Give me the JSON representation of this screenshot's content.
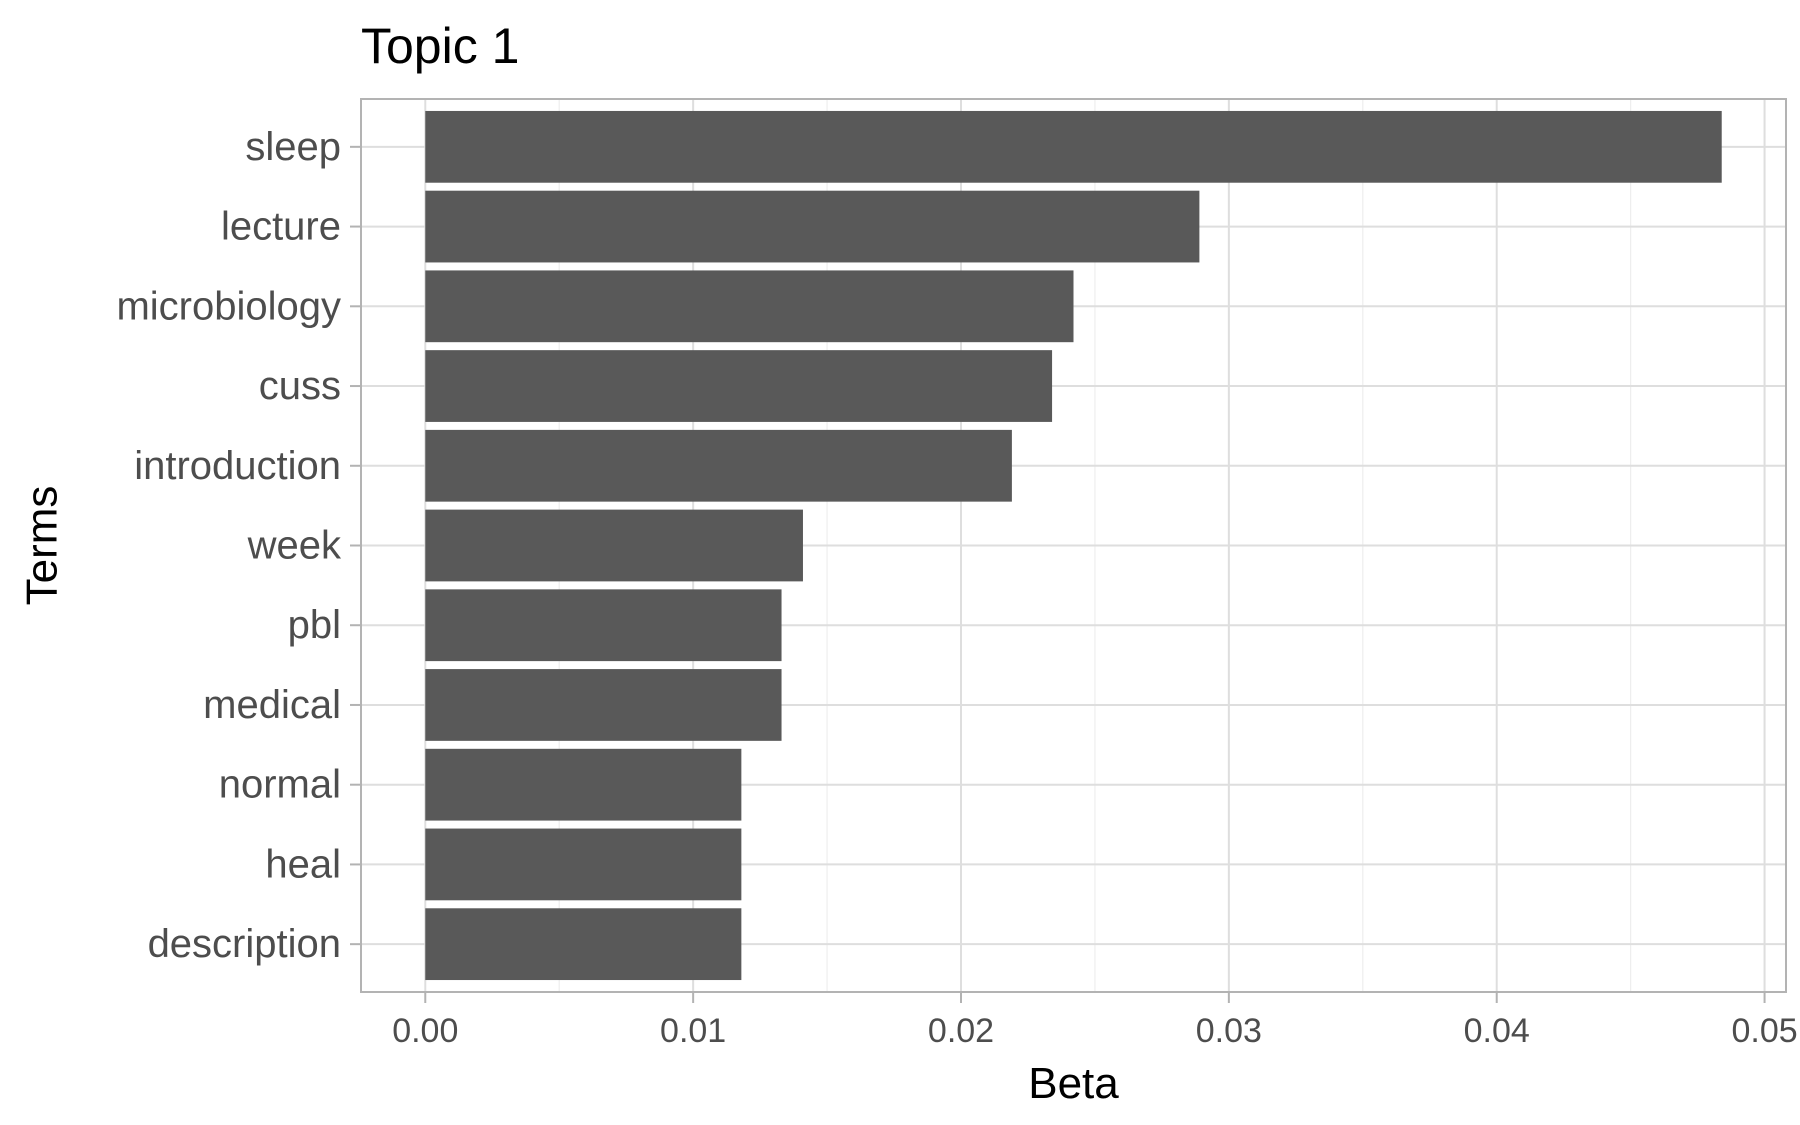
{
  "chart_data": {
    "type": "bar",
    "orientation": "horizontal",
    "title": "Topic 1",
    "xlabel": "Beta",
    "ylabel": "Terms",
    "categories": [
      "sleep",
      "lecture",
      "microbiology",
      "cuss",
      "introduction",
      "week",
      "pbl",
      "medical",
      "normal",
      "heal",
      "description"
    ],
    "values": [
      0.0484,
      0.0289,
      0.0242,
      0.0234,
      0.0219,
      0.0141,
      0.0133,
      0.0133,
      0.0118,
      0.0118,
      0.0118
    ],
    "xlim": [
      -0.0024,
      0.0508
    ],
    "xticks": [
      0.0,
      0.01,
      0.02,
      0.03,
      0.04,
      0.05
    ],
    "xtick_labels": [
      "0.00",
      "0.01",
      "0.02",
      "0.03",
      "0.04",
      "0.05"
    ],
    "grid": true,
    "legend": "none",
    "colors": {
      "bar": "#595959",
      "grid_major": "#dedede",
      "grid_minor": "#eeeeee",
      "panel_border": "#b3b3b3",
      "tick_text": "#4d4d4d",
      "title_text": "#000000"
    }
  }
}
